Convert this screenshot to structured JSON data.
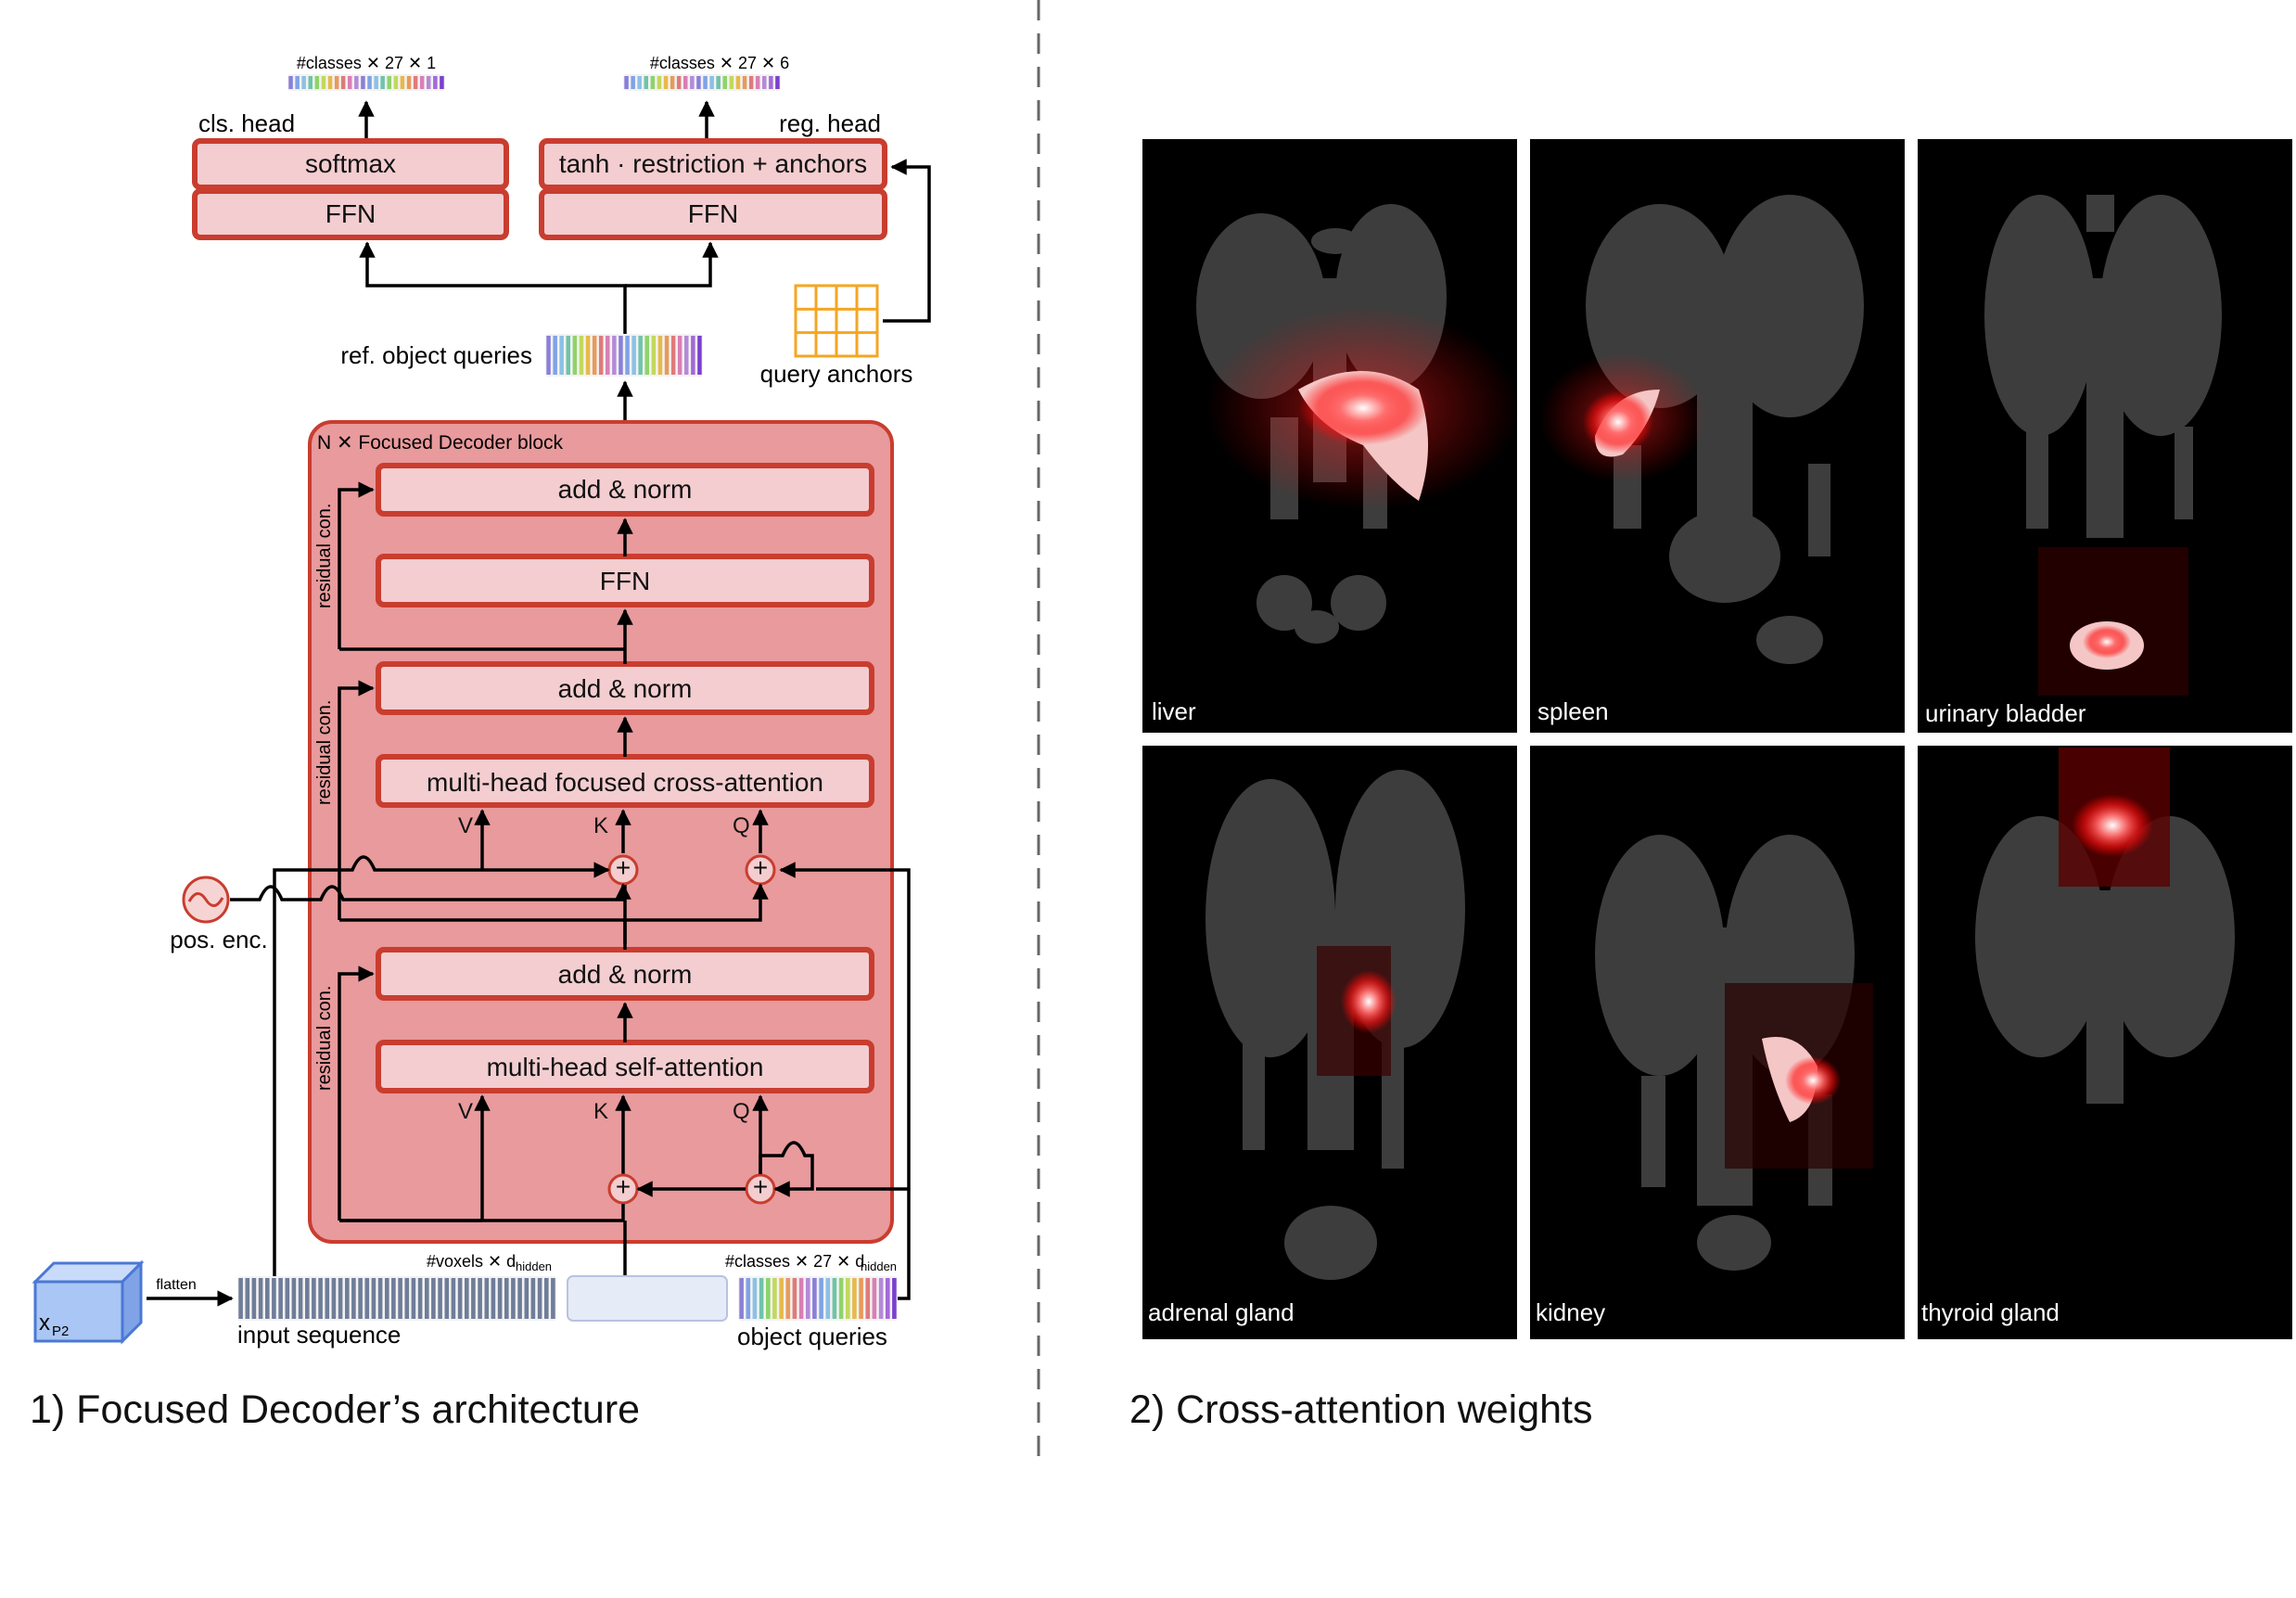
{
  "left_panel": {
    "caption": "1) Focused Decoder’s architecture",
    "cls_dims": "#classes ✕ 27 ✕ 1",
    "reg_dims": "#classes ✕ 27 ✕ 6",
    "cls_head": "cls. head",
    "reg_head": "reg. head",
    "softmax": "softmax",
    "tanh": "tanh · restriction + anchors",
    "ffn": "FFN",
    "ref_queries": "ref. object queries",
    "query_anchors": "query anchors",
    "block_title": "N ✕ Focused Decoder block",
    "add_norm": "add & norm",
    "cross_attn": "multi-head focused cross-attention",
    "self_attn": "multi-head self-attention",
    "residual": "residual con.",
    "pos_enc": "pos. enc.",
    "V": "V",
    "K": "K",
    "Q": "Q",
    "plus": "+",
    "x_label": "x",
    "x_sub": "P2",
    "flatten": "flatten",
    "voxels_dims": "#voxels ✕ d",
    "hidden_sub": "hidden",
    "classes_dims": "#classes ✕ 27 ✕ d",
    "input_sequence": "input sequence",
    "object_queries": "object queries"
  },
  "right_panel": {
    "caption": "2) Cross-attention weights",
    "panels": [
      {
        "label": "liver"
      },
      {
        "label": "spleen"
      },
      {
        "label": "urinary bladder"
      },
      {
        "label": "adrenal gland"
      },
      {
        "label": "kidney"
      },
      {
        "label": "thyroid gland"
      }
    ]
  },
  "colors": {
    "block_fill": "#e89a9c",
    "box_fill": "#f3cdd0",
    "box_stroke": "#c93d2f",
    "anchor_orange": "#f5a623",
    "cube_blue": "#a9c6f5",
    "heat_red": "#ff1a1a"
  }
}
